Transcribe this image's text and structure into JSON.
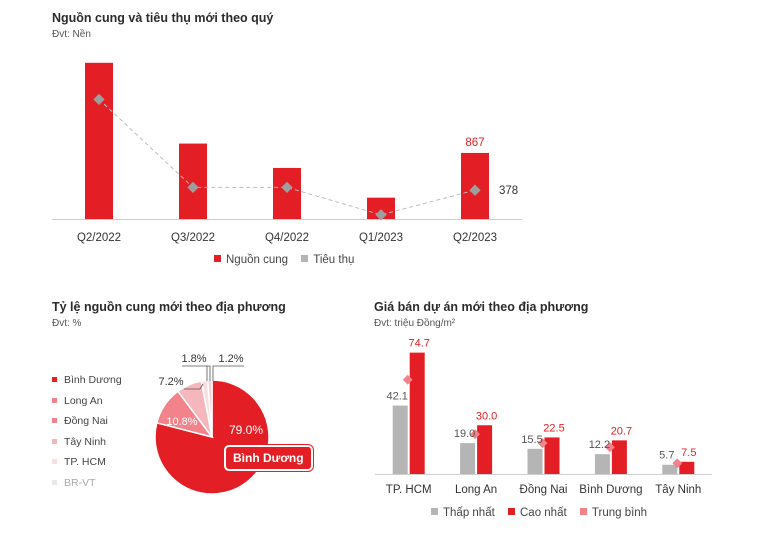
{
  "colors": {
    "red": "#e31e24",
    "gray": "#b5b5b5",
    "diamond": "#9e9e9e",
    "pink": "#f2838a",
    "light_pink": "#f5b7bb",
    "very_light": "#f8dfe0",
    "faint": "#e8e8e8",
    "avg_diamond": "#f2838a"
  },
  "chart_data": [
    {
      "type": "bar",
      "title": "Nguồn cung và tiêu thụ mới theo quý",
      "unit": "Đvt: Nền",
      "categories": [
        "Q2/2022",
        "Q3/2022",
        "Q4/2022",
        "Q1/2023",
        "Q2/2023"
      ],
      "series": [
        {
          "name": "Nguồn cung",
          "type": "bar",
          "values": [
            2050,
            990,
            670,
            280,
            867
          ]
        },
        {
          "name": "Tiêu thụ",
          "type": "line",
          "values": [
            1570,
            415,
            415,
            55,
            378
          ]
        }
      ],
      "data_labels": {
        "Nguồn cung": [
          "",
          "",
          "",
          "",
          "867"
        ],
        "Tiêu thụ": [
          "",
          "",
          "",
          "",
          "378"
        ]
      },
      "ylim": [
        0,
        2100
      ],
      "legend": "bottom"
    },
    {
      "type": "pie",
      "title": "Tỷ lệ nguồn cung mới theo địa phương",
      "unit": "Đvt: %",
      "labels": [
        "Bình Dương",
        "Long An",
        "Đồng Nai",
        "Tây Ninh",
        "TP. HCM",
        "BR-VT"
      ],
      "values": [
        79.0,
        10.8,
        7.2,
        1.8,
        1.2,
        0.0
      ],
      "value_labels": [
        "79.0%",
        "10.8%",
        "7.2%",
        "1.8%",
        "1.2%",
        ""
      ],
      "highlight": "Bình Dương",
      "legend": "left"
    },
    {
      "type": "bar",
      "title": "Giá bán dự án mới theo địa phương",
      "unit": "Đvt: triệu Đồng/m²",
      "categories": [
        "TP. HCM",
        "Long An",
        "Đồng Nai",
        "Bình Dương",
        "Tây Ninh"
      ],
      "series": [
        {
          "name": "Thấp nhất",
          "type": "bar",
          "values": [
            42.1,
            19.0,
            15.5,
            12.2,
            5.7
          ]
        },
        {
          "name": "Cao nhất",
          "type": "bar",
          "values": [
            74.7,
            30.0,
            22.5,
            20.7,
            7.5
          ]
        },
        {
          "name": "Trung bình",
          "type": "marker",
          "values": [
            58.0,
            24.5,
            19.0,
            16.5,
            6.6
          ]
        }
      ],
      "ylim": [
        0,
        80
      ],
      "legend": "bottom"
    }
  ]
}
